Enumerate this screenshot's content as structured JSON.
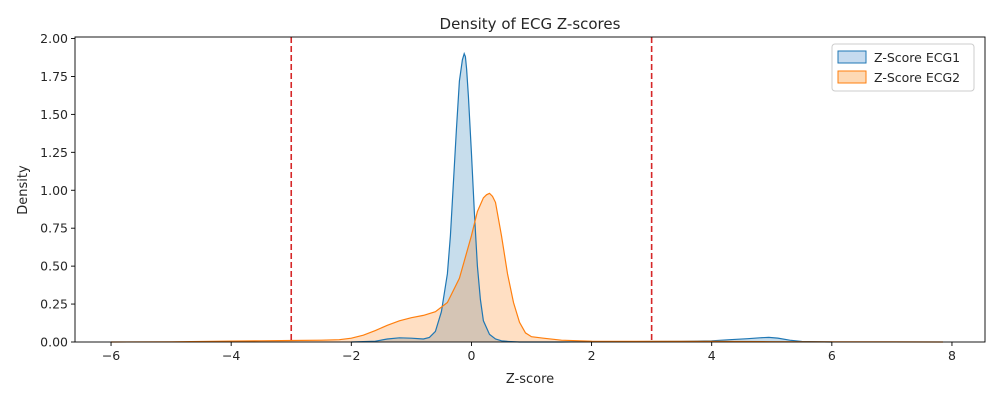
{
  "chart_data": {
    "type": "area",
    "title": "Density of ECG Z-scores",
    "xlabel": "Z-score",
    "ylabel": "Density",
    "xlim": [
      -6.6,
      8.55
    ],
    "ylim": [
      0,
      2.01
    ],
    "xticks": [
      -6,
      -4,
      -2,
      0,
      2,
      4,
      6,
      8
    ],
    "yticks": [
      0.0,
      0.25,
      0.5,
      0.75,
      1.0,
      1.25,
      1.5,
      1.75,
      2.0
    ],
    "ytick_labels": [
      "0.00",
      "0.25",
      "0.50",
      "0.75",
      "1.00",
      "1.25",
      "1.50",
      "1.75",
      "2.00"
    ],
    "grid": false,
    "legend_position": "top-right",
    "reference_lines": [
      {
        "x": -3,
        "color": "#d62728",
        "style": "dashed"
      },
      {
        "x": 3,
        "color": "#d62728",
        "style": "dashed"
      }
    ],
    "series": [
      {
        "name": "Z-Score ECG1",
        "color": "#1f77b4",
        "fill": "#c6dbef",
        "x": [
          -2.0,
          -1.6,
          -1.4,
          -1.2,
          -1.0,
          -0.8,
          -0.7,
          -0.6,
          -0.5,
          -0.4,
          -0.35,
          -0.3,
          -0.25,
          -0.2,
          -0.15,
          -0.12,
          -0.1,
          -0.08,
          -0.05,
          0.0,
          0.05,
          0.1,
          0.15,
          0.2,
          0.3,
          0.4,
          0.5,
          0.6,
          0.8,
          1.0,
          1.5,
          2.0,
          3.0,
          3.5,
          4.0,
          4.3,
          4.6,
          4.8,
          4.95,
          5.1,
          5.3,
          5.5,
          6.0
        ],
        "y": [
          0.0,
          0.005,
          0.02,
          0.028,
          0.025,
          0.02,
          0.03,
          0.07,
          0.2,
          0.45,
          0.7,
          1.05,
          1.4,
          1.72,
          1.86,
          1.9,
          1.88,
          1.8,
          1.62,
          1.25,
          0.85,
          0.5,
          0.28,
          0.14,
          0.05,
          0.02,
          0.008,
          0.004,
          0.0,
          0.0,
          0.0,
          0.002,
          0.003,
          0.004,
          0.008,
          0.015,
          0.022,
          0.028,
          0.03,
          0.026,
          0.012,
          0.003,
          0.0
        ]
      },
      {
        "name": "Z-Score ECG2",
        "color": "#ff7f0e",
        "fill": "#fdd9b5",
        "x": [
          -6.0,
          -5.0,
          -4.5,
          -4.0,
          -3.5,
          -3.0,
          -2.5,
          -2.2,
          -2.0,
          -1.8,
          -1.6,
          -1.4,
          -1.2,
          -1.0,
          -0.8,
          -0.6,
          -0.4,
          -0.2,
          0.0,
          0.1,
          0.2,
          0.25,
          0.3,
          0.35,
          0.4,
          0.5,
          0.6,
          0.7,
          0.8,
          0.9,
          1.0,
          1.2,
          1.5,
          2.0,
          3.0,
          4.0,
          5.0,
          6.0,
          7.0,
          7.85
        ],
        "y": [
          0.0,
          0.001,
          0.003,
          0.006,
          0.008,
          0.01,
          0.012,
          0.015,
          0.025,
          0.045,
          0.075,
          0.11,
          0.14,
          0.16,
          0.175,
          0.2,
          0.26,
          0.42,
          0.7,
          0.86,
          0.95,
          0.97,
          0.98,
          0.96,
          0.92,
          0.7,
          0.45,
          0.26,
          0.13,
          0.06,
          0.035,
          0.025,
          0.012,
          0.005,
          0.004,
          0.004,
          0.002,
          0.001,
          0.0005,
          0.0
        ]
      }
    ]
  }
}
